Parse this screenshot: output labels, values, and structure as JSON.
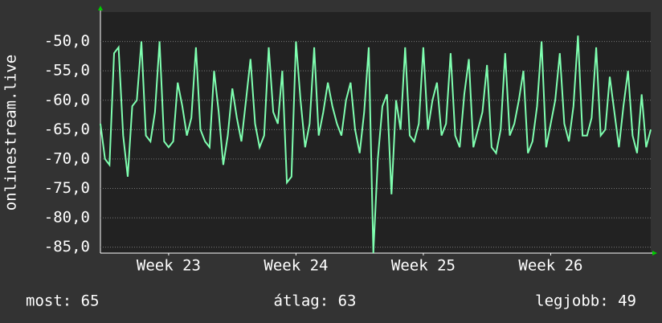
{
  "chart_data": {
    "type": "line",
    "y_label": "onlinestream.live",
    "color": "#7fffb0",
    "values": [
      -64,
      -70,
      -71,
      -52,
      -51,
      -66,
      -73,
      -61,
      -60,
      -50,
      -66,
      -67,
      -62,
      -50,
      -67,
      -68,
      -67,
      -57,
      -61,
      -66,
      -63,
      -51,
      -65,
      -67,
      -68,
      -55,
      -62,
      -71,
      -66,
      -58,
      -63,
      -67,
      -60,
      -53,
      -64,
      -68,
      -66,
      -51,
      -62,
      -64,
      -55,
      -74,
      -73,
      -50,
      -60,
      -68,
      -64,
      -51,
      -66,
      -62,
      -57,
      -61,
      -64,
      -66,
      -60,
      -57,
      -65,
      -69,
      -62,
      -51,
      -86,
      -70,
      -61,
      -59,
      -76,
      -60,
      -65,
      -51,
      -66,
      -67,
      -64,
      -51,
      -65,
      -60,
      -57,
      -66,
      -64,
      -52,
      -66,
      -68,
      -59,
      -53,
      -68,
      -65,
      -62,
      -54,
      -68,
      -69,
      -65,
      -52,
      -66,
      -64,
      -60,
      -55,
      -69,
      -67,
      -61,
      -50,
      -68,
      -64,
      -60,
      -52,
      -64,
      -67,
      -61,
      -49,
      -66,
      -66,
      -63,
      -51,
      -66,
      -65,
      -56,
      -62,
      -68,
      -61,
      -55,
      -66,
      -69,
      -59,
      -68,
      -65
    ],
    "xlim": [
      0,
      121
    ],
    "xticks": [
      {
        "value": 15,
        "label": "Week 23"
      },
      {
        "value": 43,
        "label": "Week 24"
      },
      {
        "value": 71,
        "label": "Week 25"
      },
      {
        "value": 99,
        "label": "Week 26"
      }
    ],
    "ylim": [
      -86,
      -45
    ],
    "yticks": [
      {
        "value": -50,
        "label": "-50,0"
      },
      {
        "value": -55,
        "label": "-55,0"
      },
      {
        "value": -60,
        "label": "-60,0"
      },
      {
        "value": -65,
        "label": "-65,0"
      },
      {
        "value": -70,
        "label": "-70,0"
      },
      {
        "value": -75,
        "label": "-75,0"
      },
      {
        "value": -80,
        "label": "-80,0"
      },
      {
        "value": -85,
        "label": "-85,0"
      }
    ],
    "grid": true,
    "footer": [
      "most: 65",
      "átlag: 63",
      "legjobb: 49"
    ]
  }
}
